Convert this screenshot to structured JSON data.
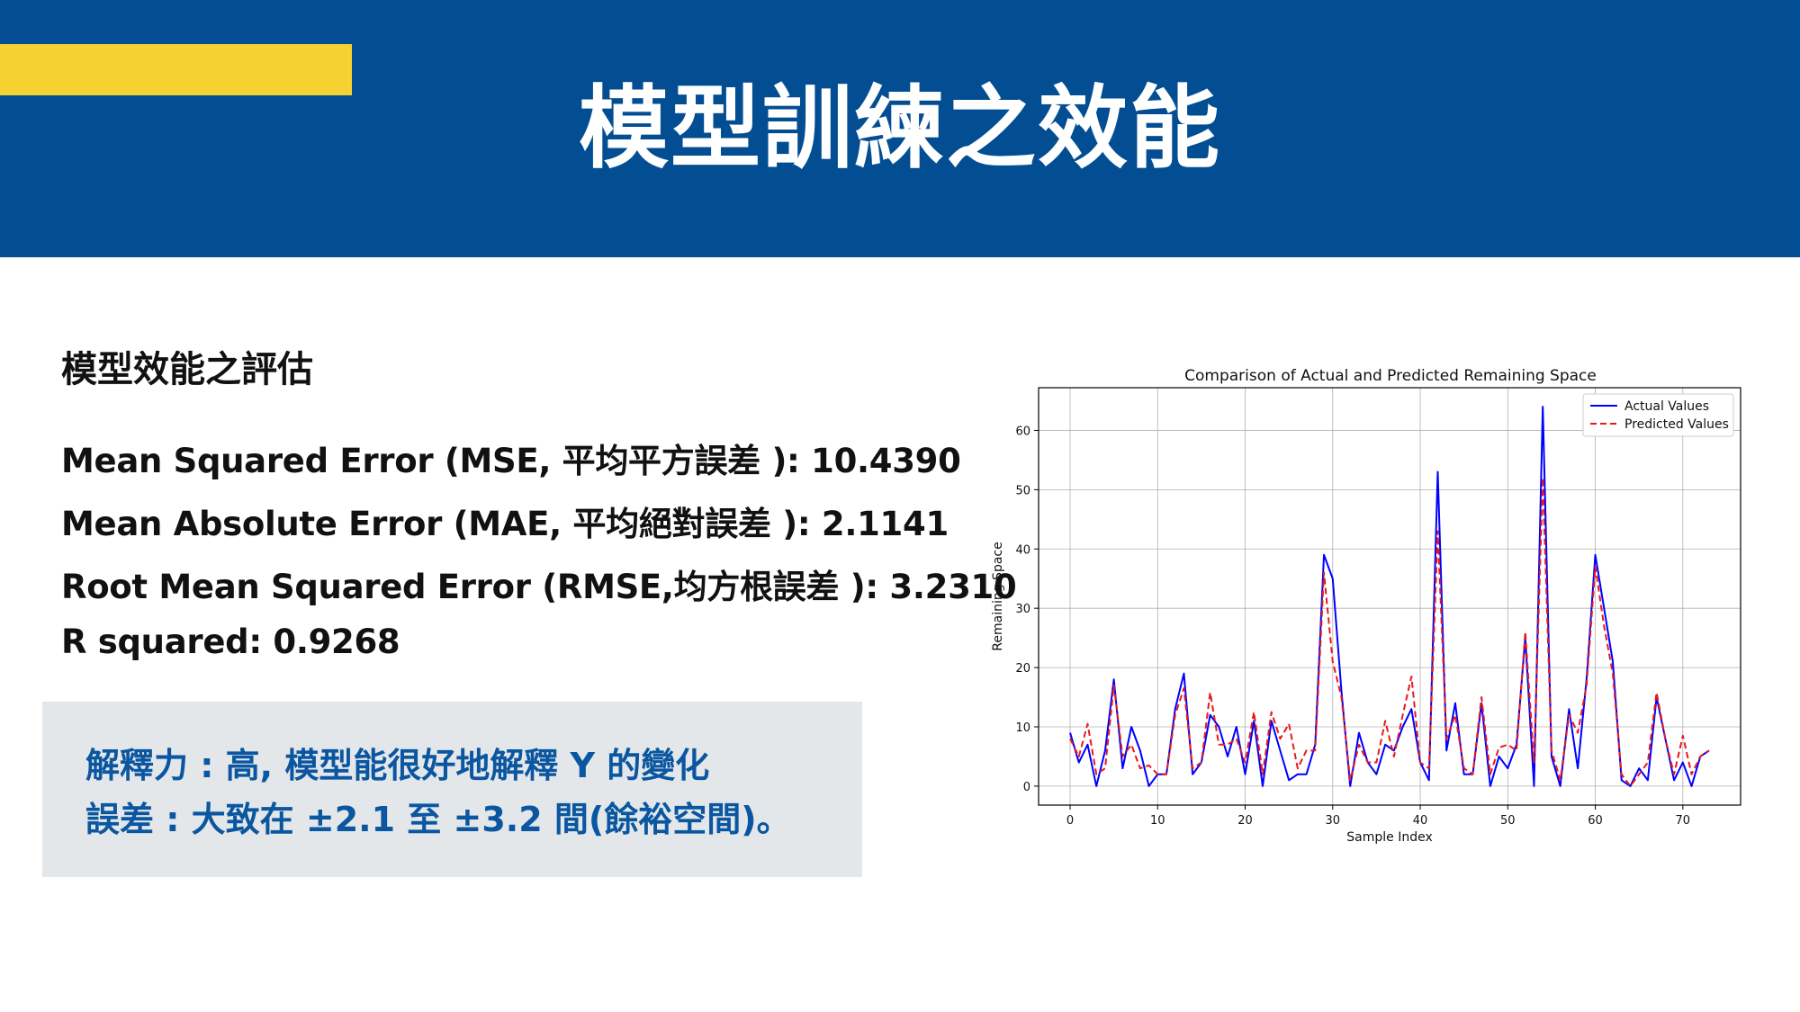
{
  "slide": {
    "title": "模型訓練之效能",
    "section_heading": "模型效能之評估",
    "metrics": [
      "Mean Squared Error (MSE, 平均平方誤差 ): 10.4390",
      "Mean Absolute Error (MAE, 平均絕對誤差 ): 2.1141",
      "Root Mean Squared Error (RMSE,均方根誤差 ): 3.2310",
      "R squared: 0.9268"
    ],
    "notes": [
      "解釋力 : 高, 模型能很好地解釋 Y 的變化",
      "誤差 : 大致在 ±2.1 至 ±3.2 間(餘裕空間)。"
    ]
  },
  "colors": {
    "header": "#034e92",
    "accent": "#f5d131",
    "note_bg": "#e3e7ea",
    "note_text": "#0b56a0",
    "actual": "#0000ff",
    "predicted": "#e8191b"
  },
  "chart_data": {
    "type": "line",
    "title": "Comparison of Actual and Predicted Remaining Space",
    "xlabel": "Sample Index",
    "ylabel": "Remaining Space",
    "xlim": [
      -3.6,
      76.6
    ],
    "ylim": [
      -3.2,
      67.2
    ],
    "xticks": [
      0,
      10,
      20,
      30,
      40,
      50,
      60,
      70
    ],
    "yticks": [
      0,
      10,
      20,
      30,
      40,
      50,
      60
    ],
    "grid": true,
    "legend_position": "top-right",
    "series": [
      {
        "name": "Actual Values",
        "style": "solid",
        "values": [
          9,
          4,
          7,
          0,
          6,
          18,
          3,
          10,
          6,
          0,
          2,
          2,
          13,
          19,
          2,
          4,
          12,
          10,
          5,
          10,
          2,
          11,
          0,
          11,
          6,
          1,
          2,
          2,
          7,
          39,
          35,
          16,
          0,
          9,
          4,
          2,
          7,
          6,
          10,
          13,
          4,
          1,
          53,
          6,
          14,
          2,
          2,
          14,
          0,
          5,
          3,
          7,
          25,
          0,
          64,
          5,
          0,
          13,
          3,
          18,
          39,
          30,
          21,
          1,
          0,
          3,
          1,
          15,
          8,
          1,
          4,
          0,
          5,
          6
        ]
      },
      {
        "name": "Predicted Values",
        "style": "dashed",
        "values": [
          8,
          5,
          10.5,
          2,
          3,
          17,
          5,
          7,
          3,
          3.5,
          2,
          2,
          12,
          16.5,
          3,
          4,
          15.8,
          7,
          7,
          8,
          4,
          12.5,
          2,
          12.5,
          8,
          10.5,
          3,
          6,
          6,
          36,
          21,
          15,
          1,
          7,
          4,
          4,
          11,
          5,
          12,
          18.5,
          4,
          3,
          43,
          8,
          12,
          3,
          2,
          15,
          2,
          6.5,
          7,
          6,
          26,
          4,
          52,
          6,
          1,
          12,
          9,
          17,
          37,
          27,
          19,
          2,
          0,
          2,
          4,
          15.8,
          8,
          2,
          8.5,
          2,
          5,
          6
        ]
      }
    ]
  }
}
